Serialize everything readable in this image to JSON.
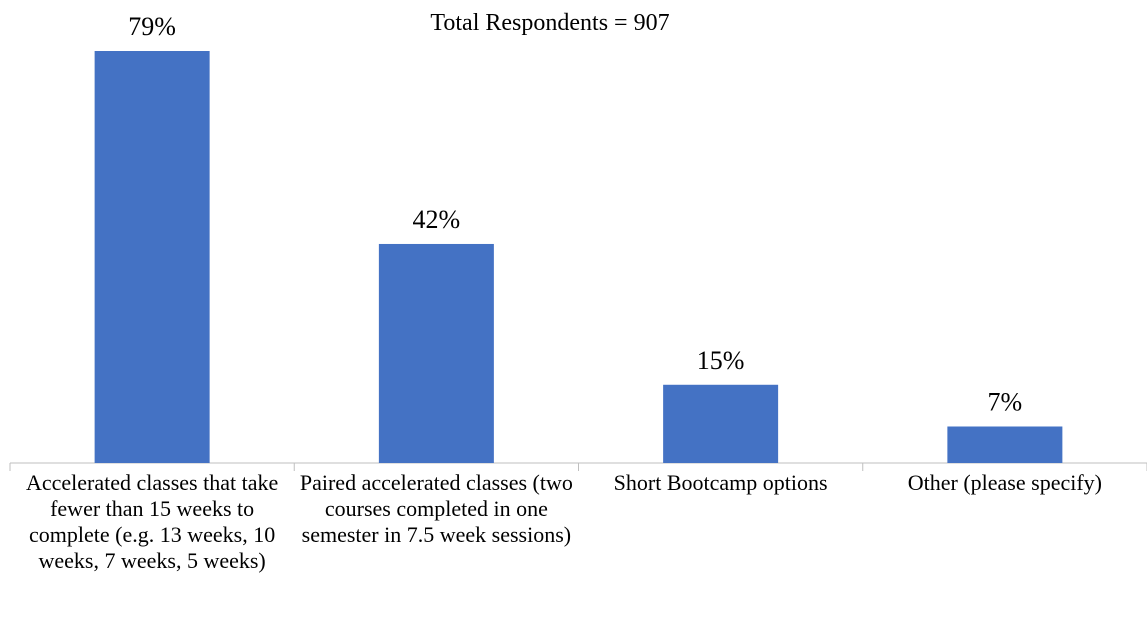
{
  "chart_data": {
    "type": "bar",
    "title": "Total Respondents = 907",
    "categories": [
      "Accelerated classes that take fewer than 15 weeks to complete (e.g. 13 weeks, 10 weeks, 7 weeks, 5 weeks)",
      "Paired accelerated classes (two courses completed in one semester in 7.5 week sessions)",
      "Short Bootcamp options",
      "Other (please specify)"
    ],
    "values": [
      79,
      42,
      15,
      7
    ],
    "value_labels": [
      "79%",
      "42%",
      "15%",
      "7%"
    ],
    "color": "#4472c4"
  }
}
